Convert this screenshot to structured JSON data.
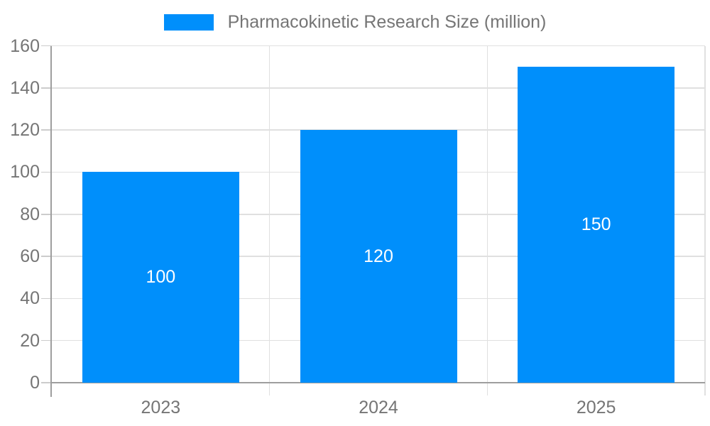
{
  "legend": {
    "label": "Pharmacokinetic Research Size (million)"
  },
  "chart_data": {
    "type": "bar",
    "title": "Pharmacokinetic Research Size (million)",
    "categories": [
      "2023",
      "2024",
      "2025"
    ],
    "values": [
      100,
      120,
      150
    ],
    "data_labels": [
      "100",
      "120",
      "150"
    ],
    "xlabel": "",
    "ylabel": "",
    "ylim": [
      0,
      160
    ],
    "yticks": [
      0,
      20,
      40,
      60,
      80,
      100,
      120,
      140,
      160
    ],
    "grid": true,
    "legend_position": "top-center",
    "colors": {
      "bar": "#008FFB",
      "data_label": "#ffffff",
      "axis_text": "#757575",
      "legend_text": "#757575",
      "grid_line": "#e0e0e0",
      "tick_line": "#cccccc",
      "axis_line": "#9e9e9e",
      "background": "#ffffff"
    }
  }
}
